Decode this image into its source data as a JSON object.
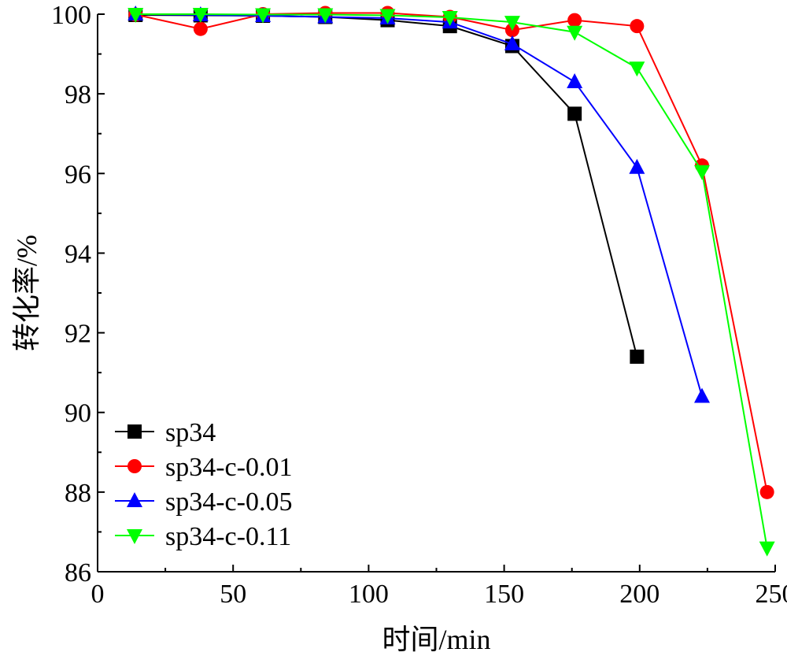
{
  "chart_data": {
    "type": "line",
    "title": "",
    "xlabel": "时间/min",
    "ylabel": "转化率/%",
    "xlim": [
      0,
      250
    ],
    "ylim": [
      86,
      100
    ],
    "x_ticks": [
      0,
      50,
      100,
      150,
      200,
      250
    ],
    "y_ticks": [
      86,
      88,
      90,
      92,
      94,
      96,
      98,
      100
    ],
    "grid": false,
    "legend_position": "bottom-left",
    "series": [
      {
        "name": "sp34",
        "color": "#000000",
        "marker": "square",
        "x": [
          14,
          38,
          61,
          84,
          107,
          130,
          153,
          176,
          199
        ],
        "y": [
          99.98,
          99.97,
          99.96,
          99.93,
          99.85,
          99.7,
          99.2,
          97.5,
          91.4
        ]
      },
      {
        "name": "sp34-c-0.01",
        "color": "#ff0000",
        "marker": "circle",
        "x": [
          14,
          38,
          61,
          84,
          107,
          130,
          153,
          176,
          199,
          223,
          247
        ],
        "y": [
          99.99,
          99.63,
          100.0,
          100.03,
          100.03,
          99.93,
          99.6,
          99.85,
          99.7,
          96.2,
          88.0
        ]
      },
      {
        "name": "sp34-c-0.05",
        "color": "#0000ff",
        "marker": "triangle-up",
        "x": [
          14,
          38,
          61,
          84,
          107,
          130,
          153,
          176,
          199,
          223
        ],
        "y": [
          100.0,
          99.98,
          99.96,
          99.93,
          99.9,
          99.8,
          99.25,
          98.3,
          96.15,
          90.4
        ]
      },
      {
        "name": "sp34-c-0.11",
        "color": "#00ff00",
        "marker": "triangle-down",
        "x": [
          14,
          38,
          61,
          84,
          107,
          130,
          153,
          176,
          199,
          223,
          247
        ],
        "y": [
          100.0,
          100.0,
          99.99,
          99.99,
          99.97,
          99.92,
          99.8,
          99.55,
          98.65,
          96.05,
          86.6
        ]
      }
    ]
  }
}
